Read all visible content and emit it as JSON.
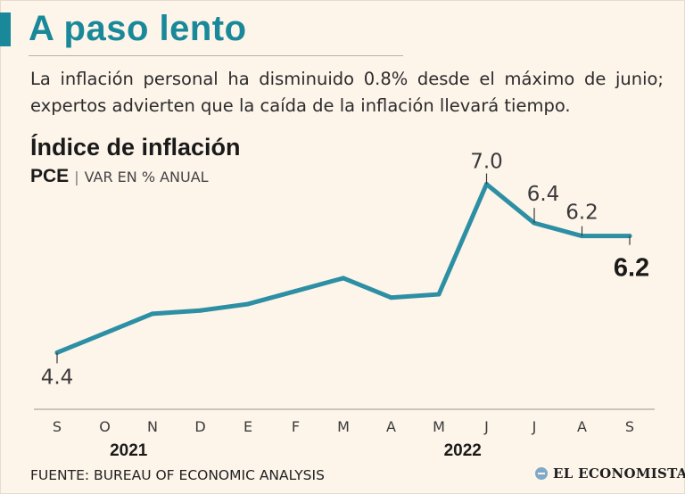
{
  "header": {
    "title": "A paso lento",
    "subtitle": "La inflación personal ha disminuido 0.8% desde el máximo de junio; expertos advierten que la caída de la inflación llevará tiempo."
  },
  "colors": {
    "accent": "#19899a",
    "line": "#2c8fa4",
    "text": "#1a1a1a",
    "background": "#fdf4ea"
  },
  "chart_data": {
    "type": "line",
    "title": "Índice de inflación",
    "series_label": "PCE",
    "unit_label": "VAR EN % ANUAL",
    "categories": [
      "S",
      "O",
      "N",
      "D",
      "E",
      "F",
      "M",
      "A",
      "M",
      "J",
      "J",
      "A",
      "S"
    ],
    "years": [
      {
        "label": "2021",
        "center_index": 1.5
      },
      {
        "label": "2022",
        "center_index": 8.5
      }
    ],
    "series": [
      {
        "name": "PCE",
        "values": [
          4.4,
          4.7,
          5.0,
          5.05,
          5.15,
          5.35,
          5.55,
          5.25,
          5.3,
          7.0,
          6.4,
          6.2,
          6.2
        ]
      }
    ],
    "data_labels": [
      {
        "index": 0,
        "text": "4.4"
      },
      {
        "index": 9,
        "text": "7.0"
      },
      {
        "index": 10,
        "text": "6.4"
      },
      {
        "index": 11,
        "text": "6.2"
      },
      {
        "index": 12,
        "text": "6.2",
        "emphasis": true
      }
    ],
    "ylim": [
      4.2,
      7.2
    ]
  },
  "footer": {
    "source": "FUENTE: BUREAU OF ECONOMIC ANALYSIS",
    "brand": "EL ECONOMISTA"
  }
}
